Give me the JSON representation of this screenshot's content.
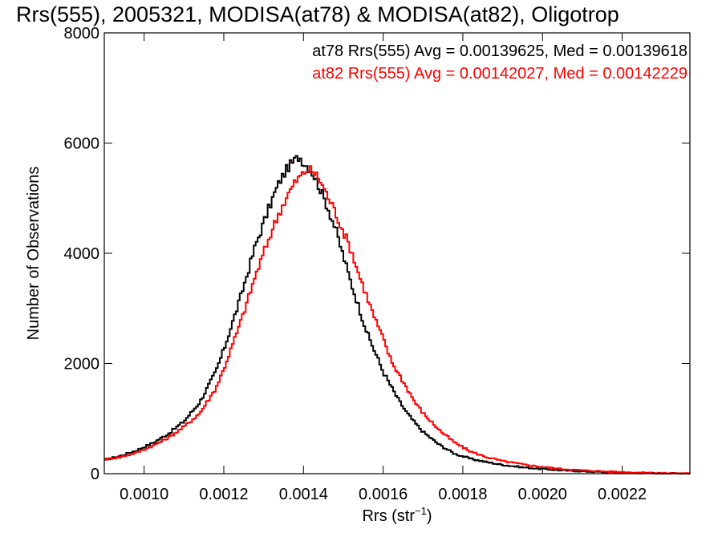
{
  "chart_data": {
    "type": "line",
    "title": "Rrs(555), 2005321, MODISA(at78) & MODISA(at82), Oligotrop",
    "xlabel_main": "Rrs (str",
    "xlabel_sup": "−1",
    "xlabel_close": ")",
    "ylabel": "Number of Observations",
    "xlim": [
      0.0009,
      0.00237
    ],
    "ylim": [
      0,
      8000
    ],
    "x_ticks": [
      0.001,
      0.0012,
      0.0014,
      0.0016,
      0.0018,
      0.002,
      0.0022
    ],
    "x_tick_labels": [
      "0.0010",
      "0.0012",
      "0.0014",
      "0.0016",
      "0.0018",
      "0.0020",
      "0.0022"
    ],
    "y_ticks": [
      0,
      2000,
      4000,
      6000,
      8000
    ],
    "y_tick_labels": [
      "0",
      "2000",
      "4000",
      "6000",
      "8000"
    ],
    "step_style": "histogram-step",
    "series": [
      {
        "name": "at78",
        "color": "#000000",
        "legend": "at78 Rrs(555) Avg = 0.00139625, Med = 0.00139618",
        "x": [
          0.0009,
          0.00094,
          0.00098,
          0.00102,
          0.00106,
          0.0011,
          0.00114,
          0.00118,
          0.0012,
          0.00122,
          0.00124,
          0.00126,
          0.00128,
          0.0013,
          0.00132,
          0.00134,
          0.00136,
          0.00138,
          0.00139,
          0.0014,
          0.00142,
          0.00144,
          0.00146,
          0.00148,
          0.0015,
          0.00152,
          0.00154,
          0.00156,
          0.00158,
          0.0016,
          0.00162,
          0.00164,
          0.00166,
          0.00168,
          0.0017,
          0.00174,
          0.00178,
          0.00182,
          0.00186,
          0.0019,
          0.00195,
          0.002,
          0.00205,
          0.0021,
          0.00215,
          0.0022,
          0.00225,
          0.0023,
          0.00237
        ],
        "y": [
          250,
          320,
          420,
          550,
          720,
          950,
          1300,
          1850,
          2250,
          2700,
          3150,
          3650,
          4150,
          4550,
          4950,
          5300,
          5550,
          5700,
          5760,
          5650,
          5500,
          5200,
          4850,
          4450,
          3950,
          3450,
          3000,
          2550,
          2200,
          1850,
          1580,
          1320,
          1100,
          920,
          760,
          530,
          360,
          270,
          210,
          160,
          115,
          85,
          60,
          42,
          30,
          20,
          12,
          8,
          4
        ]
      },
      {
        "name": "at82",
        "color": "#ff0000",
        "legend": "at82 Rrs(555) Avg = 0.00142027, Med = 0.00142229",
        "x": [
          0.0009,
          0.00094,
          0.00098,
          0.00102,
          0.00106,
          0.0011,
          0.00114,
          0.00118,
          0.0012,
          0.00122,
          0.00124,
          0.00126,
          0.00128,
          0.0013,
          0.00132,
          0.00134,
          0.00136,
          0.00138,
          0.0014,
          0.00141,
          0.00142,
          0.00144,
          0.00146,
          0.00148,
          0.0015,
          0.00152,
          0.00154,
          0.00156,
          0.00158,
          0.0016,
          0.00162,
          0.00164,
          0.00166,
          0.00168,
          0.0017,
          0.00174,
          0.00178,
          0.00182,
          0.00186,
          0.0019,
          0.00195,
          0.002,
          0.00205,
          0.0021,
          0.00215,
          0.0022,
          0.00225,
          0.0023,
          0.00237
        ],
        "y": [
          260,
          300,
          380,
          500,
          650,
          850,
          1100,
          1550,
          1900,
          2300,
          2700,
          3150,
          3600,
          4000,
          4400,
          4750,
          5050,
          5300,
          5450,
          5520,
          5500,
          5350,
          5050,
          4750,
          4400,
          4050,
          3600,
          3200,
          2800,
          2450,
          2050,
          1800,
          1550,
          1300,
          1100,
          800,
          560,
          400,
          300,
          230,
          170,
          120,
          85,
          60,
          42,
          28,
          18,
          10,
          5
        ]
      }
    ]
  }
}
